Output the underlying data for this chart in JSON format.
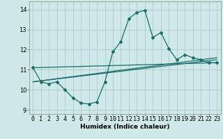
{
  "xlabel": "Humidex (Indice chaleur)",
  "bg_color": "#cfe8e8",
  "grid_color": "#aacccc",
  "line_color": "#1a6b6b",
  "xlim": [
    -0.5,
    23.5
  ],
  "ylim": [
    8.8,
    14.4
  ],
  "yticks": [
    9,
    10,
    11,
    12,
    13,
    14
  ],
  "xticks": [
    0,
    1,
    2,
    3,
    4,
    5,
    6,
    7,
    8,
    9,
    10,
    11,
    12,
    13,
    14,
    15,
    16,
    17,
    18,
    19,
    20,
    21,
    22,
    23
  ],
  "main_curve_y": [
    11.1,
    10.4,
    10.3,
    10.4,
    10.0,
    9.6,
    9.35,
    9.3,
    9.4,
    10.4,
    11.9,
    12.4,
    13.55,
    13.85,
    13.95,
    12.6,
    12.85,
    12.05,
    11.5,
    11.75,
    11.6,
    11.5,
    11.35,
    11.35
  ],
  "trend1_y": [
    11.1,
    11.35
  ],
  "trend2_y": [
    10.4,
    11.5
  ],
  "trend3_y": [
    10.4,
    11.6
  ],
  "font_size_label": 6.5,
  "font_size_tick": 6.0
}
